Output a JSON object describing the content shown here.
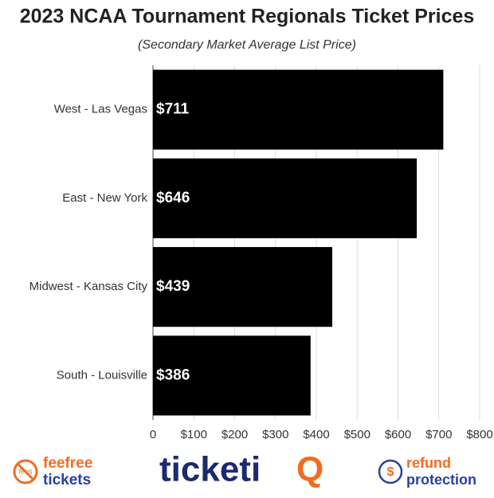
{
  "chart_data": {
    "type": "bar",
    "orientation": "horizontal",
    "title": "2023 NCAA Tournament Regionals Ticket Prices",
    "subtitle": "(Secondary Market Average List Price)",
    "categories": [
      "West - Las Vegas",
      "East - New York",
      "Midwest - Kansas City",
      "South - Louisville"
    ],
    "values": [
      711,
      646,
      439,
      386
    ],
    "value_labels": [
      "$711",
      "$646",
      "$439",
      "$386"
    ],
    "color": "#000000",
    "xlim": [
      0,
      800
    ],
    "xticks": [
      0,
      {
        "value": 100,
        "label": "$100"
      },
      {
        "value": 200,
        "label": "$200"
      },
      {
        "value": 300,
        "label": "$300"
      },
      {
        "value": 400,
        "label": "$400"
      },
      {
        "value": 500,
        "label": "$500"
      },
      {
        "value": 600,
        "label": "$600"
      },
      {
        "value": 700,
        "label": "$700"
      },
      {
        "value": 800,
        "label": "$800"
      }
    ],
    "grid": true
  },
  "footer": {
    "left": {
      "icon": "fees",
      "line1": "feefree",
      "line2": "tickets"
    },
    "center": {
      "brand": "ticketi",
      "mark": "Q"
    },
    "right": {
      "icon": "$",
      "line1": "refund",
      "line2": "protection"
    }
  }
}
